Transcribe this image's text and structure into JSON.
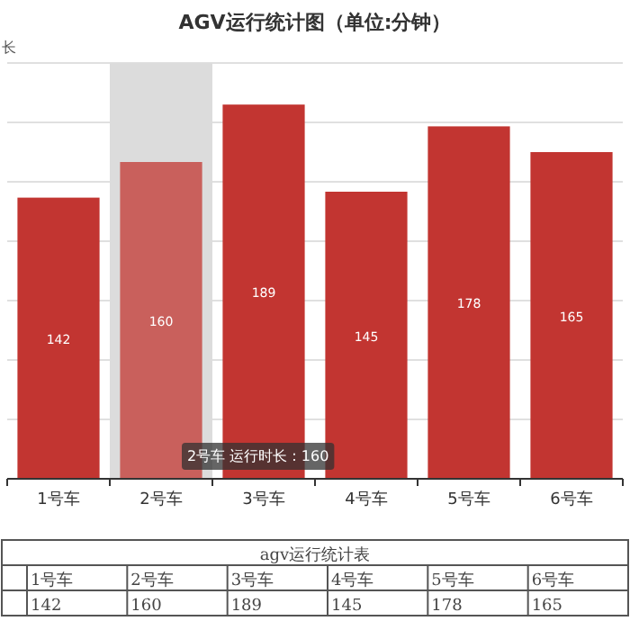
{
  "chart_data": {
    "type": "bar",
    "title": "AGV运行统计图（单位:分钟）",
    "ylabel": "长",
    "categories": [
      "1号车",
      "2号车",
      "3号车",
      "4号车",
      "5号车",
      "6号车"
    ],
    "values": [
      142,
      160,
      189,
      145,
      178,
      165
    ],
    "colors": [
      "#c23531",
      "#c9605c",
      "#c23531",
      "#c23531",
      "#c23531",
      "#c23531"
    ],
    "ylim": [
      0,
      210
    ],
    "yticks": [
      {
        "value": 0,
        "label": null
      },
      {
        "value": 30,
        "label": null
      },
      {
        "value": 60,
        "label": null
      },
      {
        "value": 90,
        "label": null
      },
      {
        "value": 120,
        "label": null
      },
      {
        "value": 150,
        "label": null
      },
      {
        "value": 180,
        "label": null
      },
      {
        "value": 210,
        "label": null
      }
    ],
    "grid": "y",
    "bands": [
      {
        "axis": "x",
        "from": "2号车",
        "to": "2号车",
        "color": "#dcdcdc"
      }
    ],
    "value_labels": [
      "142",
      "160",
      "189",
      "145",
      "178",
      "165"
    ],
    "annotations": [
      "2号车 运行时长 : 160",
      "agv运行统计表"
    ]
  }
}
